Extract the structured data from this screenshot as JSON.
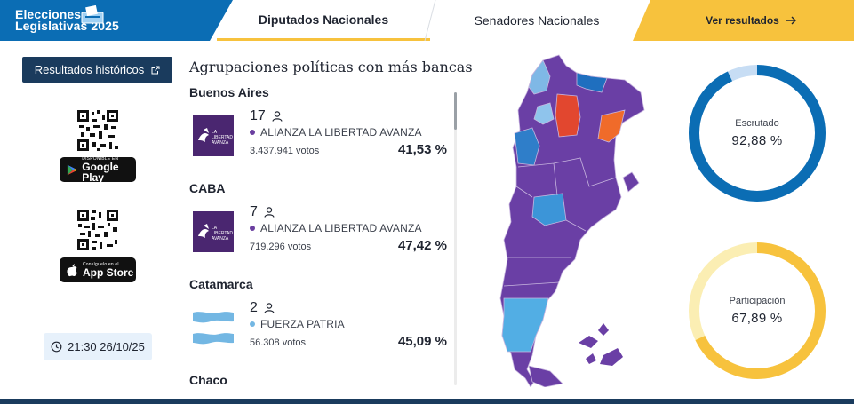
{
  "header": {
    "brand_line1": "Elecciones",
    "brand_line2": "Legislativas 2025",
    "tabs": [
      {
        "label": "Diputados Nacionales",
        "active": true
      },
      {
        "label": "Senadores Nacionales",
        "active": false
      }
    ],
    "results_button": "Ver resultados"
  },
  "sidebar": {
    "historic_button": "Resultados históricos",
    "google_play_small": "DISPONIBLE EN",
    "google_play_big": "Google Play",
    "app_store_small": "Consíguelo en el",
    "app_store_big": "App Store",
    "timestamp": "21:30 26/10/25"
  },
  "list": {
    "title": "Agrupaciones políticas con más bancas",
    "provinces": [
      {
        "name": "Buenos Aires",
        "seats": "17",
        "party": "ALIANZA LA LIBERTAD AVANZA",
        "votes": "3.437.941 votos",
        "percent": "41,53 %",
        "logo": "lla",
        "dot_color": "#6b3fa0"
      },
      {
        "name": "CABA",
        "seats": "7",
        "party": "ALIANZA LA LIBERTAD AVANZA",
        "votes": "719.296 votos",
        "percent": "47,42 %",
        "logo": "lla",
        "dot_color": "#6b3fa0"
      },
      {
        "name": "Catamarca",
        "seats": "2",
        "party": "FUERZA PATRIA",
        "votes": "56.308 votos",
        "percent": "45,09 %",
        "logo": "fp",
        "dot_color": "#73b7e3"
      }
    ],
    "next_province": "Chaco",
    "logo_text_lla": [
      "LA",
      "LIBERTAD",
      "AVANZA"
    ]
  },
  "stats": {
    "escrutado_label": "Escrutado",
    "escrutado_value": "92,88 %",
    "escrutado_fraction": 0.9288,
    "participacion_label": "Participación",
    "participacion_value": "67,89 %",
    "participacion_fraction": 0.6789
  },
  "colors": {
    "brand_blue": "#0b6db4",
    "accent_yellow": "#f7c23d",
    "navy": "#1a3b5d",
    "lla_purple": "#6b3fa0",
    "fp_lightblue": "#73b7e3"
  },
  "icons": {
    "external": "external-link-icon",
    "arrow": "arrow-right-icon",
    "person": "person-icon",
    "clock": "clock-icon"
  }
}
